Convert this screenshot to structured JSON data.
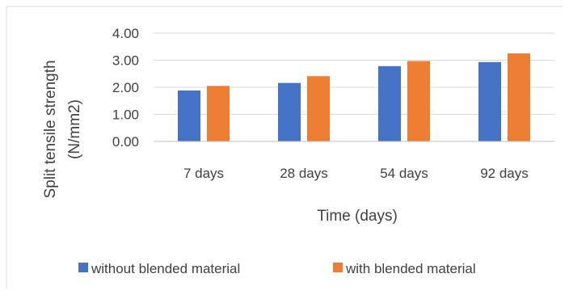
{
  "chart_data": {
    "type": "bar",
    "title": "",
    "xlabel": "Time (days)",
    "ylabel_lines": [
      "Split  tensile strength",
      "(N/mm2)"
    ],
    "categories": [
      "7 days",
      "28 days",
      "54 days",
      "92 days"
    ],
    "ylim": [
      0,
      4
    ],
    "yticks": [
      "0.00",
      "1.00",
      "2.00",
      "3.00",
      "4.00"
    ],
    "grid": true,
    "legend_position": "bottom",
    "series": [
      {
        "name": "without blended material",
        "color": "#4472C4",
        "values": [
          1.88,
          2.16,
          2.78,
          2.93
        ]
      },
      {
        "name": "with blended material",
        "color": "#ED7D31",
        "values": [
          2.05,
          2.41,
          2.97,
          3.25
        ]
      }
    ]
  }
}
